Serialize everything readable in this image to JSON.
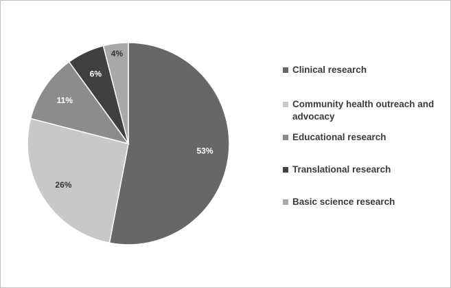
{
  "chart_data": {
    "type": "pie",
    "title": "",
    "slices": [
      {
        "label": "Clinical research",
        "value": 53,
        "display": "53%",
        "color": "#676767",
        "label_color": "#ffffff"
      },
      {
        "label": "Community health outreach and advocacy",
        "value": 26,
        "display": "26%",
        "color": "#c8c8c8",
        "label_color": "#333333"
      },
      {
        "label": "Educational research",
        "value": 11,
        "display": "11%",
        "color": "#8c8c8c",
        "label_color": "#ffffff"
      },
      {
        "label": "Translational research",
        "value": 6,
        "display": "6%",
        "color": "#404040",
        "label_color": "#ffffff"
      },
      {
        "label": "Basic science research",
        "value": 4,
        "display": "4%",
        "color": "#a8a8a8",
        "label_color": "#333333"
      }
    ],
    "start_angle_deg": 0,
    "direction": "clockwise",
    "legend": {
      "position": "right"
    }
  }
}
